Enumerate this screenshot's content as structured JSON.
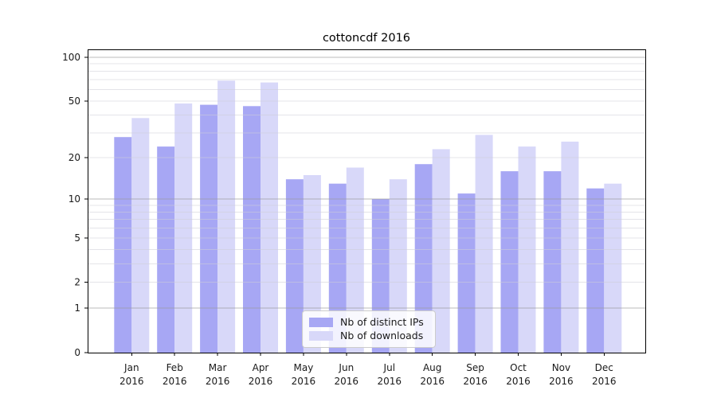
{
  "chart_data": {
    "type": "bar",
    "title": "cottoncdf 2016",
    "categories": [
      "Jan",
      "Feb",
      "Mar",
      "Apr",
      "May",
      "Jun",
      "Jul",
      "Aug",
      "Sep",
      "Oct",
      "Nov",
      "Dec"
    ],
    "category_year": "2016",
    "series": [
      {
        "name": "Nb of distinct IPs",
        "color": "#a7a7f4",
        "values": [
          28,
          24,
          47,
          46,
          14,
          13,
          10,
          18,
          11,
          16,
          16,
          12
        ]
      },
      {
        "name": "Nb of downloads",
        "color": "#d8d8f9",
        "values": [
          38,
          48,
          69,
          67,
          15,
          17,
          14,
          23,
          29,
          24,
          26,
          13
        ]
      }
    ],
    "xlabel": "",
    "ylabel": "",
    "yscale": "log1p",
    "ylim": [
      0,
      114
    ],
    "grid": true,
    "legend_position": "lower center",
    "yticks": [
      {
        "value": 100,
        "label": "100"
      },
      {
        "value": 50,
        "label": "50"
      },
      {
        "value": 20,
        "label": "20"
      },
      {
        "value": 10,
        "label": "10"
      },
      {
        "value": 5,
        "label": "5"
      },
      {
        "value": 2,
        "label": "2"
      },
      {
        "value": 1,
        "label": "1"
      },
      {
        "value": 0,
        "label": "0"
      }
    ],
    "minor_gridlines": [
      2,
      3,
      4,
      5,
      6,
      7,
      8,
      9,
      20,
      30,
      40,
      50,
      60,
      70,
      80,
      90
    ],
    "major_gridlines": [
      1,
      10,
      100
    ]
  },
  "colors": {
    "axis": "#000000",
    "major_grid": "rgba(150,150,150,0.65)",
    "minor_grid": "rgba(205,205,215,0.55)",
    "tick_text": "#1a1a1a",
    "legend_border": "#cccccc"
  }
}
